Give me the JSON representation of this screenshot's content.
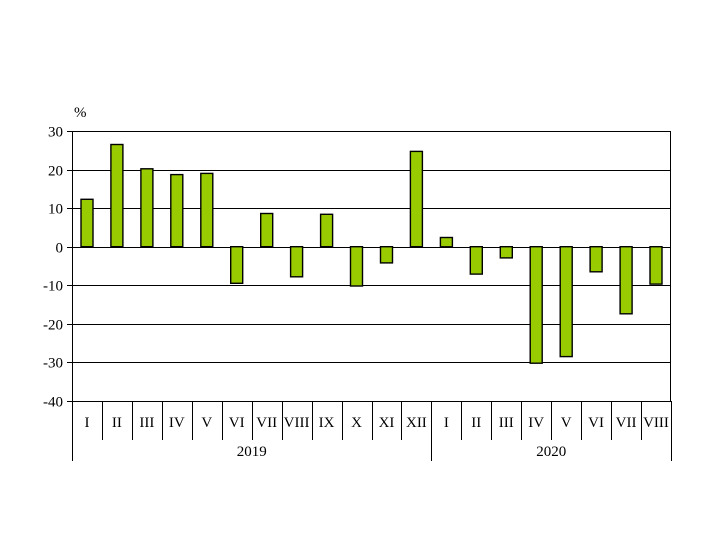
{
  "chart_data": {
    "type": "bar",
    "unit_label": "%",
    "ylim": [
      -40,
      30
    ],
    "yticks": [
      30,
      20,
      10,
      0,
      -10,
      -20,
      -30,
      -40
    ],
    "grid": true,
    "legend": "none",
    "bar_color": "#99cc00",
    "bar_border_color": "#000000",
    "categories": [
      "I",
      "II",
      "III",
      "IV",
      "V",
      "VI",
      "VII",
      "VIII",
      "IX",
      "X",
      "XI",
      "XII",
      "I",
      "II",
      "III",
      "IV",
      "V",
      "VI",
      "VII",
      "VIII"
    ],
    "groups": [
      {
        "label": "2019",
        "count": 12
      },
      {
        "label": "2020",
        "count": 8
      }
    ],
    "values": [
      12.3,
      26.5,
      20.2,
      18.7,
      19.0,
      -9.5,
      8.6,
      -7.8,
      8.4,
      -10.2,
      -4.2,
      24.7,
      2.4,
      -7.1,
      -2.9,
      -30.2,
      -28.5,
      -6.5,
      -17.4,
      -9.7
    ]
  }
}
